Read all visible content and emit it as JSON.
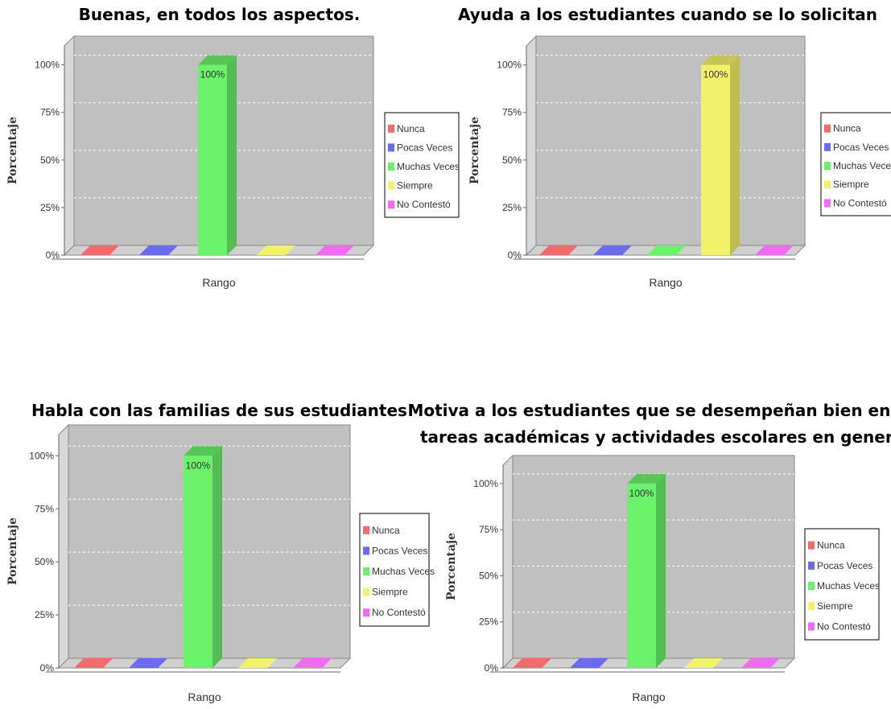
{
  "chart_data": [
    {
      "type": "bar",
      "title": [
        "Buenas, en todos los aspectos."
      ],
      "xlabel": "Rango",
      "ylabel": "Porcentaje",
      "ylim": [
        0,
        100
      ],
      "yticks": [
        "0%",
        "25%",
        "50%",
        "75%",
        "100%"
      ],
      "categories": [
        "Nunca",
        "Pocas Veces",
        "Muchas Veces",
        "Siempre",
        "No Contestó"
      ],
      "values": [
        0,
        0,
        100,
        0,
        0
      ],
      "value_labels": [
        "",
        "",
        "100%",
        "",
        ""
      ],
      "legend_position": "right",
      "grid": true
    },
    {
      "type": "bar",
      "title": [
        "Ayuda a los estudiantes cuando se lo solicitan"
      ],
      "xlabel": "Rango",
      "ylabel": "Porcentaje",
      "ylim": [
        0,
        100
      ],
      "yticks": [
        "0%",
        "25%",
        "50%",
        "75%",
        "100%"
      ],
      "categories": [
        "Nunca",
        "Pocas Veces",
        "Muchas Veces",
        "Siempre",
        "No Contestó"
      ],
      "values": [
        0,
        0,
        0,
        100,
        0
      ],
      "value_labels": [
        "",
        "",
        "",
        "100%",
        ""
      ],
      "legend_position": "right",
      "grid": true
    },
    {
      "type": "bar",
      "title": [
        "Habla con las familias de sus estudiantes"
      ],
      "xlabel": "Rango",
      "ylabel": "Porcentaje",
      "ylim": [
        0,
        100
      ],
      "yticks": [
        "0%",
        "25%",
        "50%",
        "75%",
        "100%"
      ],
      "categories": [
        "Nunca",
        "Pocas Veces",
        "Muchas Veces",
        "Siempre",
        "No Contestó"
      ],
      "values": [
        0,
        0,
        100,
        0,
        0
      ],
      "value_labels": [
        "",
        "",
        "100%",
        "",
        ""
      ],
      "legend_position": "right",
      "grid": true
    },
    {
      "type": "bar",
      "title": [
        "Motiva a los estudiantes que se desempeñan bien en las",
        "tareas académicas y actividades escolares en general"
      ],
      "xlabel": "Rango",
      "ylabel": "Porcentaje",
      "ylim": [
        0,
        100
      ],
      "yticks": [
        "0%",
        "25%",
        "50%",
        "75%",
        "100%"
      ],
      "categories": [
        "Nunca",
        "Pocas Veces",
        "Muchas Veces",
        "Siempre",
        "No Contestó"
      ],
      "values": [
        0,
        0,
        100,
        0,
        0
      ],
      "value_labels": [
        "",
        "",
        "100%",
        "",
        ""
      ],
      "legend_position": "right",
      "grid": true
    }
  ],
  "colors": {
    "Nunca": "#f26a6a",
    "Pocas Veces": "#6a6af2",
    "Muchas Veces": "#6af26a",
    "Siempre": "#f2f26a",
    "No Contestó": "#f26af2"
  }
}
